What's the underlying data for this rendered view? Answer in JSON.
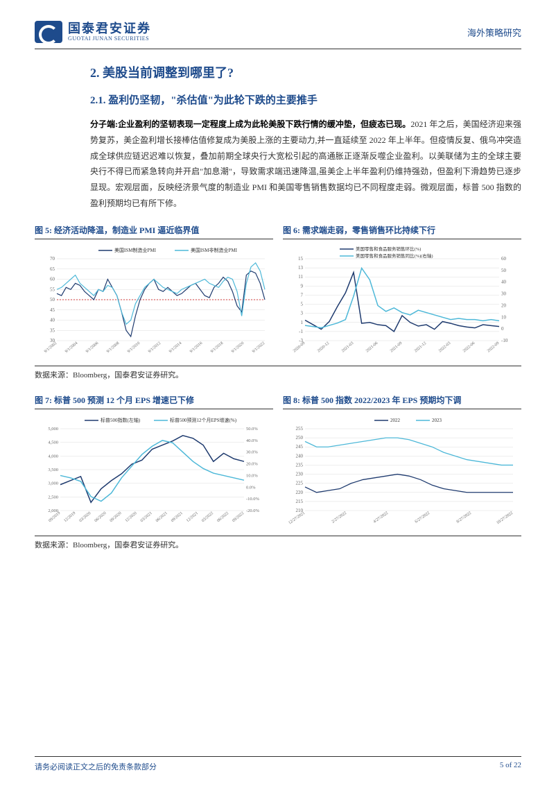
{
  "header": {
    "logo_cn": "国泰君安证券",
    "logo_en": "GUOTAI JUNAN SECURITIES",
    "right": "海外策略研究"
  },
  "section": {
    "title": "2. 美股当前调整到哪里了?",
    "subtitle": "2.1. 盈利仍坚韧，\"杀估值\"为此轮下跌的主要推手",
    "body_bold": "分子端:企业盈利的坚韧表现一定程度上成为此轮美股下跌行情的缓冲垫，但疲态已现。",
    "body_rest": "2021 年之后，美国经济迎来强势复苏，美企盈利增长接棒估值修复成为美股上涨的主要动力,并一直延续至 2022 年上半年。但疫情反复、俄乌冲突造成全球供应链迟迟难以恢复，叠加前期全球央行大宽松引起的高通胀正逐渐反噬企业盈利。以美联储为主的全球主要央行不得已而紧急转向并开启\"加息潮\"，导致需求端迅速降温,虽美企上半年盈利仍维持强劲，但盈利下滑趋势已逐步显现。宏观层面，反映经济景气度的制造业 PMI 和美国零售销售数据均已不同程度走弱。微观层面，标普 500 指数的盈利预期均已有所下修。"
  },
  "charts": {
    "chart5": {
      "title": "图 5: 经济活动降温，制造业 PMI 逼近临界值",
      "type": "line",
      "legend": [
        "美国ISM制造业PMI",
        "美国ISM非制造业PMI"
      ],
      "colors": [
        "#1e3a6e",
        "#4db8d8"
      ],
      "x_labels": [
        "9/1/2002",
        "9/1/2004",
        "9/1/2006",
        "9/1/2008",
        "9/1/2010",
        "9/1/2012",
        "9/1/2014",
        "9/1/2016",
        "9/1/2018",
        "9/1/2020",
        "9/1/2022"
      ],
      "y_range": [
        30,
        70
      ],
      "y_ticks": [
        30,
        35,
        40,
        45,
        50,
        55,
        60,
        65,
        70
      ],
      "ref_line": 50,
      "series1": [
        53,
        52,
        56,
        55,
        58,
        57,
        54,
        52,
        50,
        55,
        54,
        60,
        56,
        52,
        44,
        35,
        32,
        42,
        50,
        55,
        58,
        60,
        55,
        54,
        56,
        54,
        52,
        53,
        55,
        57,
        58,
        55,
        52,
        51,
        56,
        58,
        61,
        59,
        54,
        47,
        44,
        62,
        64,
        63,
        58,
        50
      ],
      "series2": [
        55,
        56,
        58,
        60,
        62,
        58,
        56,
        54,
        52,
        55,
        54,
        57,
        56,
        52,
        44,
        38,
        40,
        48,
        52,
        56,
        58,
        60,
        58,
        56,
        55,
        54,
        53,
        55,
        56,
        57,
        58,
        59,
        60,
        58,
        57,
        56,
        59,
        61,
        60,
        54,
        42,
        58,
        66,
        68,
        64,
        55
      ],
      "background_color": "#ffffff",
      "grid_color": "#dddddd"
    },
    "chart6": {
      "title": "图 6: 需求端走弱，零售销售环比持续下行",
      "type": "line",
      "legend": [
        "美国零售和食品服务销售环比(%)",
        "美国零售和食品服务销售同比(%)(右轴)"
      ],
      "colors": [
        "#1e3a6e",
        "#4db8d8"
      ],
      "x_labels": [
        "2020-09",
        "2020-12",
        "2021-03",
        "2021-06",
        "2021-09",
        "2021-12",
        "2022-03",
        "2022-06",
        "2022-09"
      ],
      "y_left_range": [
        -3,
        15
      ],
      "y_left_ticks": [
        -3,
        -1,
        1,
        3,
        5,
        7,
        9,
        11,
        13,
        15
      ],
      "y_right_range": [
        -10,
        60
      ],
      "y_right_ticks": [
        -10,
        0,
        10,
        20,
        30,
        40,
        50,
        60
      ],
      "series1": [
        1.5,
        0.5,
        -0.5,
        1.2,
        4.5,
        7.5,
        12.0,
        0.8,
        1.0,
        0.5,
        0.3,
        -1.0,
        2.5,
        1.0,
        0.2,
        0.5,
        -0.5,
        1.2,
        0.8,
        0.3,
        0.0,
        -0.2,
        0.5,
        0.3,
        0.1
      ],
      "series2": [
        3,
        2,
        1,
        3,
        5,
        8,
        28,
        52,
        42,
        20,
        15,
        18,
        14,
        12,
        16,
        14,
        12,
        10,
        8,
        9,
        8,
        8,
        7,
        8,
        7
      ],
      "background_color": "#ffffff",
      "grid_color": "#dddddd"
    },
    "chart7": {
      "title": "图 7: 标普 500 预测 12 个月 EPS 增速已下修",
      "type": "line",
      "legend": [
        "标普500指数(左轴)",
        "标普500预测12个月EPS增速(%)"
      ],
      "colors": [
        "#1e3a6e",
        "#4db8d8"
      ],
      "x_labels": [
        "09/2019",
        "12/2019",
        "03/2020",
        "06/2020",
        "09/2020",
        "12/2020",
        "03/2021",
        "06/2021",
        "09/2021",
        "12/2021",
        "03/2022",
        "06/2022",
        "09/2022"
      ],
      "y_left_range": [
        2000,
        5000
      ],
      "y_left_ticks": [
        2000,
        2500,
        3000,
        3500,
        4000,
        4500,
        5000
      ],
      "y_right_range": [
        -20,
        50
      ],
      "y_right_ticks": [
        "-20.0%",
        "-10.0%",
        "0.0%",
        "10.0%",
        "20.0%",
        "30.0%",
        "40.0%",
        "50.0%"
      ],
      "series1": [
        2950,
        3100,
        3250,
        2300,
        2800,
        3100,
        3350,
        3700,
        3850,
        4250,
        4400,
        4550,
        4750,
        4650,
        4400,
        3800,
        4100,
        3900,
        3800
      ],
      "series2": [
        10,
        8,
        5,
        -8,
        -12,
        -5,
        8,
        18,
        28,
        35,
        40,
        38,
        30,
        22,
        16,
        12,
        10,
        8,
        6
      ],
      "background_color": "#ffffff",
      "grid_color": "#dddddd"
    },
    "chart8": {
      "title": "图 8: 标普 500 指数 2022/2023 年 EPS 预期均下调",
      "type": "line",
      "legend": [
        "2022",
        "2023"
      ],
      "colors": [
        "#1e3a6e",
        "#4db8d8"
      ],
      "x_labels": [
        "12/27/2021",
        "2/27/2022",
        "4/27/2022",
        "6/27/2022",
        "8/27/2022",
        "10/27/2022"
      ],
      "y_range": [
        210,
        255
      ],
      "y_ticks": [
        210,
        215,
        220,
        225,
        230,
        235,
        240,
        245,
        250,
        255
      ],
      "series1": [
        223,
        220,
        221,
        222,
        225,
        227,
        228,
        229,
        230,
        229,
        227,
        224,
        222,
        221,
        220,
        220,
        220,
        220,
        220
      ],
      "series2": [
        248,
        245,
        245,
        246,
        247,
        248,
        249,
        250,
        250,
        249,
        247,
        245,
        242,
        240,
        238,
        237,
        236,
        235,
        235
      ],
      "background_color": "#ffffff",
      "grid_color": "#dddddd"
    },
    "source": "数据来源：Bloomberg，国泰君安证券研究。"
  },
  "footer": {
    "left": "请务必阅读正文之后的免责条款部分",
    "right": "5 of 22"
  }
}
